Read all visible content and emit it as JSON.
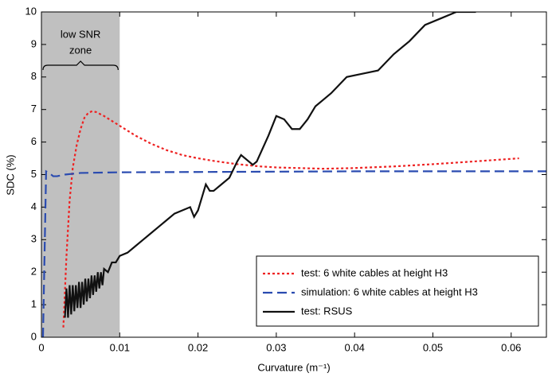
{
  "chart_data": {
    "type": "line",
    "xlabel": "Curvature (m⁻¹)",
    "ylabel": "SDC (%)",
    "xlim": [
      0,
      0.0645
    ],
    "ylim": [
      0,
      10
    ],
    "xticks": [
      0,
      0.01,
      0.02,
      0.03,
      0.04,
      0.05,
      0.06
    ],
    "yticks": [
      0,
      1,
      2,
      3,
      4,
      5,
      6,
      7,
      8,
      9,
      10
    ],
    "grid": false,
    "legend": "lower right",
    "shaded_region": [
      0,
      0.01
    ],
    "shaded_color": "#c0c0c0",
    "annotation": [
      "low SNR",
      "zone"
    ],
    "series": [
      {
        "name": "test: 6 white cables at height H3",
        "color": "#ee2222",
        "style": "dotted",
        "x": [
          0.0028,
          0.0032,
          0.0036,
          0.004,
          0.0045,
          0.005,
          0.0055,
          0.006,
          0.0065,
          0.007,
          0.008,
          0.009,
          0.01,
          0.012,
          0.014,
          0.016,
          0.018,
          0.02,
          0.022,
          0.025,
          0.028,
          0.03,
          0.033,
          0.036,
          0.04,
          0.045,
          0.05,
          0.055,
          0.061
        ],
        "values": [
          0.3,
          2.5,
          4.2,
          5.2,
          5.9,
          6.4,
          6.75,
          6.9,
          6.95,
          6.92,
          6.8,
          6.65,
          6.5,
          6.2,
          5.95,
          5.75,
          5.6,
          5.5,
          5.42,
          5.32,
          5.25,
          5.22,
          5.2,
          5.18,
          5.2,
          5.25,
          5.32,
          5.4,
          5.5
        ]
      },
      {
        "name": "simulation: 6 white cables at height H3",
        "color": "#2a4bb0",
        "style": "dashed",
        "x": [
          0.0002,
          0.0006,
          0.001,
          0.0015,
          0.002,
          0.003,
          0.005,
          0.01,
          0.02,
          0.03,
          0.04,
          0.05,
          0.06,
          0.0645
        ],
        "values": [
          0,
          5.1,
          5.05,
          4.95,
          4.95,
          5.0,
          5.05,
          5.07,
          5.08,
          5.09,
          5.1,
          5.1,
          5.1,
          5.1
        ]
      },
      {
        "name": "test: RSUS",
        "color": "#111111",
        "style": "solid",
        "x": [
          0.003,
          0.0032,
          0.0034,
          0.0036,
          0.0038,
          0.004,
          0.0042,
          0.0044,
          0.0046,
          0.0048,
          0.005,
          0.0052,
          0.0054,
          0.0056,
          0.0058,
          0.006,
          0.0062,
          0.0064,
          0.0066,
          0.0068,
          0.007,
          0.0072,
          0.0074,
          0.0076,
          0.0078,
          0.008,
          0.0085,
          0.009,
          0.0095,
          0.01,
          0.011,
          0.012,
          0.013,
          0.014,
          0.015,
          0.016,
          0.017,
          0.018,
          0.019,
          0.0195,
          0.02,
          0.021,
          0.0215,
          0.022,
          0.023,
          0.024,
          0.025,
          0.0255,
          0.027,
          0.0275,
          0.029,
          0.03,
          0.031,
          0.032,
          0.033,
          0.034,
          0.035,
          0.036,
          0.037,
          0.039,
          0.041,
          0.043,
          0.045,
          0.047,
          0.049,
          0.051,
          0.053,
          0.0555
        ],
        "values": [
          0.6,
          1.5,
          0.6,
          1.6,
          0.7,
          1.6,
          0.8,
          1.6,
          0.9,
          1.7,
          0.9,
          1.7,
          1.0,
          1.8,
          1.1,
          1.8,
          1.2,
          1.9,
          1.3,
          1.9,
          1.4,
          2.0,
          1.5,
          2.0,
          1.6,
          2.1,
          2.0,
          2.3,
          2.3,
          2.5,
          2.6,
          2.8,
          3.0,
          3.2,
          3.4,
          3.6,
          3.8,
          3.9,
          4.0,
          3.7,
          3.9,
          4.7,
          4.5,
          4.5,
          4.7,
          4.9,
          5.4,
          5.6,
          5.3,
          5.4,
          6.2,
          6.8,
          6.7,
          6.4,
          6.4,
          6.7,
          7.1,
          7.3,
          7.5,
          8.0,
          8.1,
          8.2,
          8.7,
          9.1,
          9.6,
          9.8,
          10.0,
          10.0
        ]
      }
    ]
  }
}
